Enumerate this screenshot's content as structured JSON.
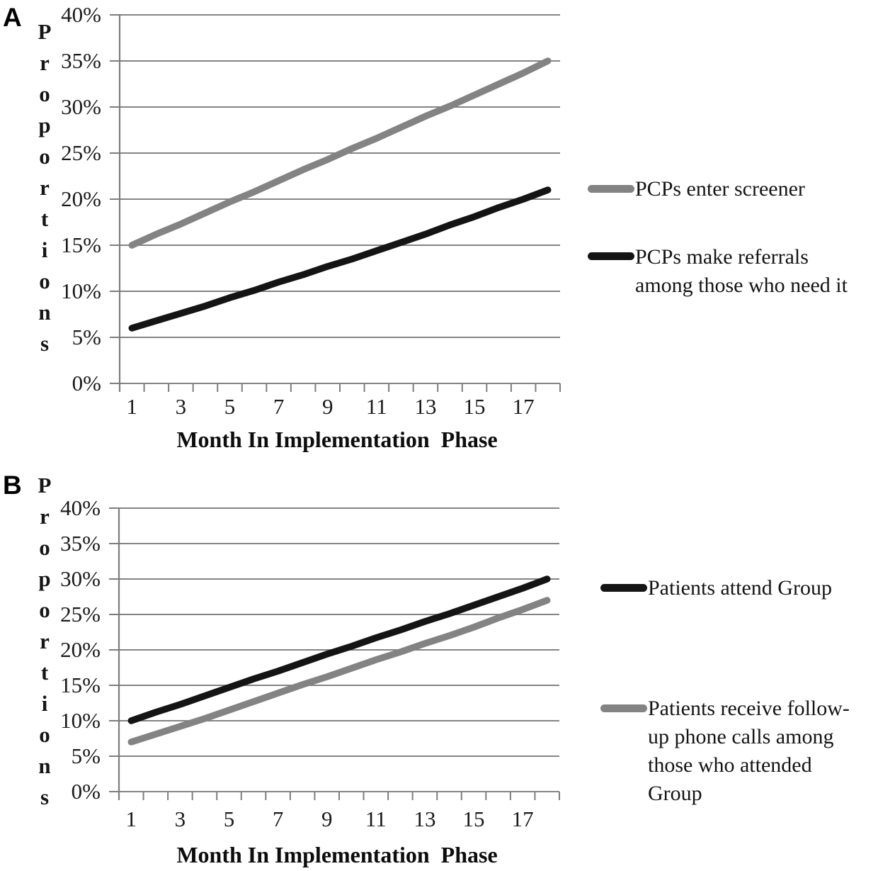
{
  "figure": {
    "background": "#ffffff",
    "panels": [
      {
        "panel_label": "A",
        "y_axis_label": "Proportions",
        "x_axis_title": "Month In Implementation  Phase",
        "y_tick_labels": [
          "40%",
          "35%",
          "30%",
          "25%",
          "20%",
          "15%",
          "10%",
          "5%",
          "0%"
        ],
        "x_tick_labels": [
          "1",
          "3",
          "5",
          "7",
          "9",
          "11",
          "13",
          "15",
          "17"
        ],
        "legend": [
          {
            "label": "PCPs enter screener",
            "color": "#838383"
          },
          {
            "label": "PCPs make referrals\namong those who need it",
            "color": "#141414"
          }
        ]
      },
      {
        "panel_label": "B",
        "y_axis_label": "Proportions",
        "x_axis_title": "Month In Implementation  Phase",
        "y_tick_labels": [
          "40%",
          "35%",
          "30%",
          "25%",
          "20%",
          "15%",
          "10%",
          "5%",
          "0%"
        ],
        "x_tick_labels": [
          "1",
          "3",
          "5",
          "7",
          "9",
          "11",
          "13",
          "15",
          "17"
        ],
        "legend": [
          {
            "label": "Patients attend Group",
            "color": "#141414"
          },
          {
            "label": "Patients receive follow-\nup phone calls among\nthose who attended\nGroup",
            "color": "#838383"
          }
        ]
      }
    ]
  },
  "colors": {
    "grid": "#848484",
    "axis": "#7d7d7d",
    "series_gray": "#838383",
    "series_black": "#141414",
    "text": "#111111"
  },
  "chart_data": [
    {
      "type": "line",
      "title": "",
      "xlabel": "Month In Implementation Phase",
      "ylabel": "Proportions",
      "x": [
        1,
        2,
        3,
        4,
        5,
        6,
        7,
        8,
        9,
        10,
        11,
        12,
        13,
        14,
        15,
        16,
        17,
        18
      ],
      "x_tick_labels": [
        1,
        3,
        5,
        7,
        9,
        11,
        13,
        15,
        17
      ],
      "ylim": [
        0,
        40
      ],
      "y_ticks_percent": [
        0,
        5,
        10,
        15,
        20,
        25,
        30,
        35,
        40
      ],
      "grid": true,
      "legend_position": "right",
      "series": [
        {
          "name": "PCPs enter screener",
          "color": "#838383",
          "values": [
            15.0,
            16.2,
            17.3,
            18.5,
            19.7,
            20.8,
            22.0,
            23.2,
            24.3,
            25.5,
            26.6,
            27.8,
            29.0,
            30.1,
            31.3,
            32.5,
            33.7,
            35.0
          ]
        },
        {
          "name": "PCPs make referrals among those who need it",
          "color": "#141414",
          "values": [
            6.0,
            6.8,
            7.6,
            8.4,
            9.3,
            10.1,
            11.0,
            11.8,
            12.7,
            13.5,
            14.4,
            15.3,
            16.2,
            17.2,
            18.1,
            19.1,
            20.0,
            21.0
          ]
        }
      ]
    },
    {
      "type": "line",
      "title": "",
      "xlabel": "Month In Implementation Phase",
      "ylabel": "Proportions",
      "x": [
        1,
        2,
        3,
        4,
        5,
        6,
        7,
        8,
        9,
        10,
        11,
        12,
        13,
        14,
        15,
        16,
        17,
        18
      ],
      "x_tick_labels": [
        1,
        3,
        5,
        7,
        9,
        11,
        13,
        15,
        17
      ],
      "ylim": [
        0,
        40
      ],
      "y_ticks_percent": [
        0,
        5,
        10,
        15,
        20,
        25,
        30,
        35,
        40
      ],
      "grid": true,
      "legend_position": "right",
      "series": [
        {
          "name": "Patients attend Group",
          "color": "#141414",
          "values": [
            10.0,
            11.2,
            12.3,
            13.5,
            14.7,
            15.9,
            17.0,
            18.2,
            19.4,
            20.5,
            21.7,
            22.8,
            24.0,
            25.1,
            26.3,
            27.5,
            28.7,
            30.0
          ]
        },
        {
          "name": "Patients receive follow-up phone calls among those who attended Group",
          "color": "#838383",
          "values": [
            7.0,
            8.1,
            9.2,
            10.3,
            11.5,
            12.7,
            13.9,
            15.1,
            16.2,
            17.4,
            18.6,
            19.7,
            20.9,
            22.0,
            23.2,
            24.5,
            25.7,
            27.0
          ]
        }
      ]
    }
  ]
}
